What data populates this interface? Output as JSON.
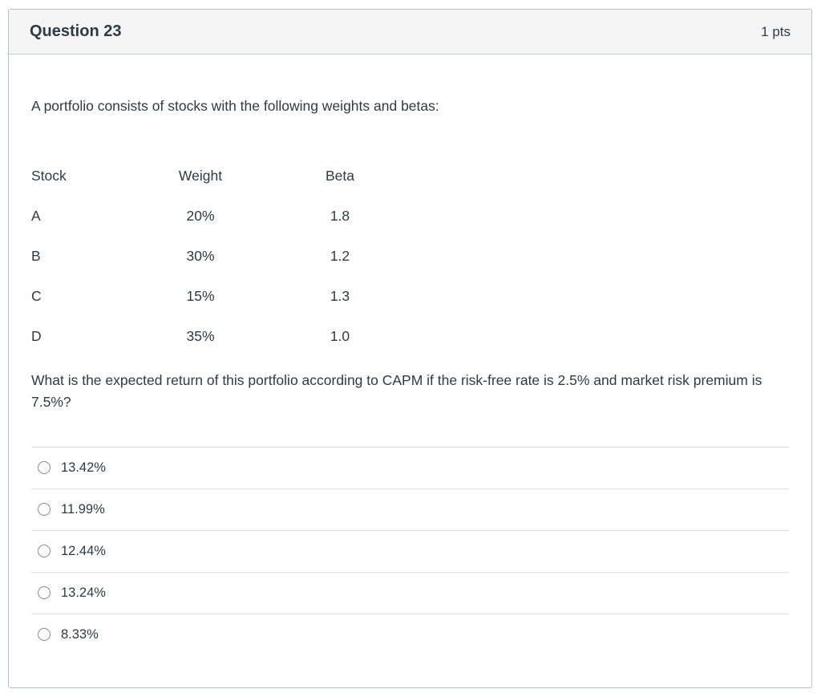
{
  "question": {
    "title": "Question 23",
    "points": "1 pts",
    "intro": "A portfolio consists of stocks with the following weights and betas:",
    "table": {
      "headers": {
        "stock": "Stock",
        "weight": "Weight",
        "beta": "Beta"
      },
      "rows": [
        {
          "stock": "A",
          "weight": "20%",
          "beta": "1.8"
        },
        {
          "stock": "B",
          "weight": "30%",
          "beta": "1.2"
        },
        {
          "stock": "C",
          "weight": "15%",
          "beta": "1.3"
        },
        {
          "stock": "D",
          "weight": "35%",
          "beta": "1.0"
        }
      ]
    },
    "prompt": "What is the expected return of this portfolio according to CAPM if the risk-free rate is 2.5% and market risk premium is 7.5%?",
    "options": [
      "13.42%",
      "11.99%",
      "12.44%",
      "13.24%",
      "8.33%"
    ]
  },
  "colors": {
    "header_bg": "#f5f5f5",
    "card_border": "#b9c0c4",
    "divider": "#dddddd",
    "text": "#2d3b45"
  }
}
